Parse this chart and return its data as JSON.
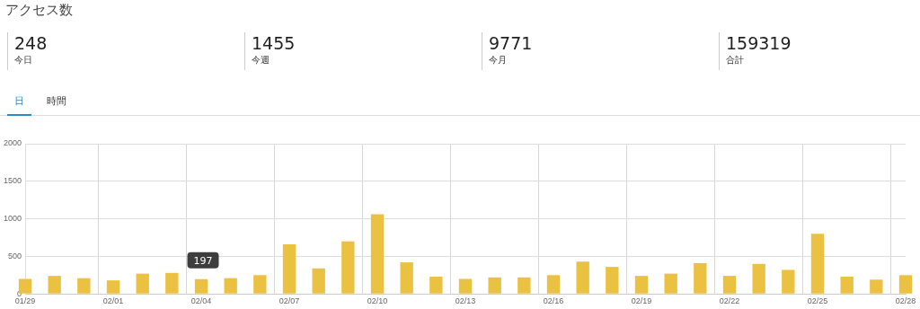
{
  "chart_data": [
    {
      "type": "other",
      "title": "アクセス数",
      "annotations": [
        "248",
        "今日",
        "1455",
        "今週",
        "9771",
        "今月",
        "159319",
        "合計",
        "日",
        "時間"
      ]
    },
    {
      "type": "bar",
      "categories": [
        "01/29",
        null,
        null,
        "02/01",
        null,
        null,
        "02/04",
        null,
        null,
        "02/07",
        null,
        null,
        "02/10",
        null,
        null,
        "02/13",
        null,
        null,
        "02/16",
        null,
        null,
        "02/19",
        null,
        null,
        "02/22",
        null,
        null,
        "02/25",
        null,
        null,
        "02/28"
      ],
      "values": [
        200,
        240,
        210,
        180,
        270,
        280,
        197,
        210,
        250,
        660,
        340,
        700,
        1060,
        420,
        230,
        200,
        220,
        220,
        250,
        430,
        360,
        240,
        270,
        410,
        240,
        400,
        320,
        800,
        230,
        190,
        250
      ],
      "color": "#ebc142",
      "ylim": [
        0,
        2000
      ],
      "yticks": [
        0,
        500,
        1000,
        1500,
        2000
      ],
      "grid": true,
      "legend": false,
      "annotations": [
        {
          "text": "197",
          "x": "02/04",
          "y": 197
        }
      ]
    }
  ]
}
